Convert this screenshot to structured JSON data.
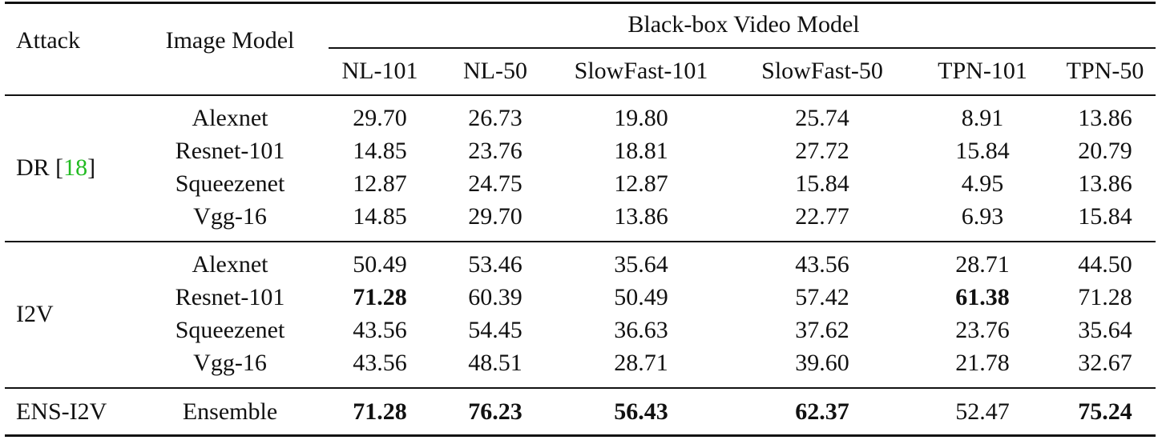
{
  "header": {
    "attack": "Attack",
    "image_model": "Image Model",
    "group": "Black-box Video Model",
    "columns": [
      "NL-101",
      "NL-50",
      "SlowFast-101",
      "SlowFast-50",
      "TPN-101",
      "TPN-50"
    ]
  },
  "groups": [
    {
      "attack": "DR [",
      "ref": "18",
      "attack_suffix": "]",
      "rows": [
        {
          "model": "Alexnet",
          "values": [
            "29.70",
            "26.73",
            "19.80",
            "25.74",
            "8.91",
            "13.86"
          ],
          "bold": []
        },
        {
          "model": "Resnet-101",
          "values": [
            "14.85",
            "23.76",
            "18.81",
            "27.72",
            "15.84",
            "20.79"
          ],
          "bold": []
        },
        {
          "model": "Squeezenet",
          "values": [
            "12.87",
            "24.75",
            "12.87",
            "15.84",
            "4.95",
            "13.86"
          ],
          "bold": []
        },
        {
          "model": "Vgg-16",
          "values": [
            "14.85",
            "29.70",
            "13.86",
            "22.77",
            "6.93",
            "15.84"
          ],
          "bold": []
        }
      ]
    },
    {
      "attack": "I2V",
      "rows": [
        {
          "model": "Alexnet",
          "values": [
            "50.49",
            "53.46",
            "35.64",
            "43.56",
            "28.71",
            "44.50"
          ],
          "bold": []
        },
        {
          "model": "Resnet-101",
          "values": [
            "71.28",
            "60.39",
            "50.49",
            "57.42",
            "61.38",
            "71.28"
          ],
          "bold": [
            0,
            4
          ]
        },
        {
          "model": "Squeezenet",
          "values": [
            "43.56",
            "54.45",
            "36.63",
            "37.62",
            "23.76",
            "35.64"
          ],
          "bold": []
        },
        {
          "model": "Vgg-16",
          "values": [
            "43.56",
            "48.51",
            "28.71",
            "39.60",
            "21.78",
            "32.67"
          ],
          "bold": []
        }
      ]
    },
    {
      "attack": "ENS-I2V",
      "rows": [
        {
          "model": "Ensemble",
          "values": [
            "71.28",
            "76.23",
            "56.43",
            "62.37",
            "52.47",
            "75.24"
          ],
          "bold": [
            0,
            1,
            2,
            3,
            5
          ]
        }
      ]
    }
  ]
}
